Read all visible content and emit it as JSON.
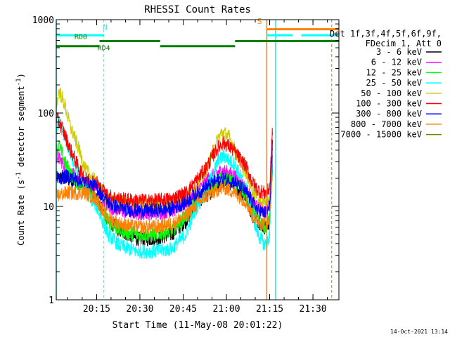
{
  "chart_data": {
    "type": "line",
    "title": "RHESSI Count Rates",
    "xlabel": "Start Time (11-May-08 20:01:22)",
    "ylabel_prefix": "Count Rate (s",
    "ylabel_sup1": "-1",
    "ylabel_mid": " detector segment",
    "ylabel_sup2": "-1",
    "ylabel_suffix": ")",
    "yscale": "log",
    "ylim": [
      1,
      1000
    ],
    "xlim_minutes": [
      0,
      98
    ],
    "xticks": [
      {
        "t": 14,
        "label": "20:15"
      },
      {
        "t": 29,
        "label": "20:30"
      },
      {
        "t": 44,
        "label": "20:45"
      },
      {
        "t": 59,
        "label": "21:00"
      },
      {
        "t": 74,
        "label": "21:15"
      },
      {
        "t": 89,
        "label": "21:30"
      }
    ],
    "yticks": [
      {
        "v": 1,
        "label": "1"
      },
      {
        "v": 10,
        "label": "10"
      },
      {
        "v": 100,
        "label": "100"
      },
      {
        "v": 1000,
        "label": "1000"
      }
    ],
    "legend_header": [
      "Det 1f,3f,4f,5f,6f,9f,",
      "FDecim 1, Att 0"
    ],
    "legend_placement": "right",
    "timestamp": "14-Oct-2021 13:14",
    "series": [
      {
        "name": "3 - 6 keV",
        "color": "#000000",
        "x": [
          0,
          3,
          8,
          10,
          14,
          16,
          18,
          22,
          28,
          34,
          40,
          45,
          48,
          52,
          56,
          58,
          62,
          66,
          68,
          70,
          72,
          73,
          74,
          75
        ],
        "y": [
          20,
          20,
          18,
          16,
          12,
          9,
          7,
          5.5,
          4.5,
          4.5,
          5,
          7,
          10,
          13,
          16,
          18,
          17,
          12,
          8,
          7,
          6,
          6,
          7,
          30
        ]
      },
      {
        "name": "6 - 12 keV",
        "color": "#ff00ff",
        "x": [
          0,
          2,
          5,
          8,
          10,
          14,
          16,
          18,
          22,
          28,
          34,
          40,
          45,
          48,
          52,
          56,
          58,
          62,
          66,
          68,
          70,
          72,
          73,
          74,
          75
        ],
        "y": [
          35,
          30,
          22,
          20,
          18,
          15,
          12,
          10,
          9,
          8.5,
          8.5,
          9,
          11,
          14,
          19,
          23,
          24,
          21,
          15,
          11,
          10,
          9,
          9,
          12,
          50
        ]
      },
      {
        "name": "12 - 25 keV",
        "color": "#00ff00",
        "x": [
          0,
          1,
          3,
          6,
          8,
          10,
          14,
          16,
          18,
          22,
          28,
          34,
          40,
          45,
          48,
          52,
          56,
          58,
          62,
          66,
          68,
          70,
          72,
          73,
          74,
          75
        ],
        "y": [
          40,
          45,
          30,
          20,
          17,
          15,
          12,
          9,
          7,
          5.5,
          5,
          5,
          5.5,
          8,
          11,
          15,
          19,
          20,
          18,
          13,
          9,
          7,
          6,
          6,
          8,
          35
        ]
      },
      {
        "name": "25 - 50 keV",
        "color": "#00ffff",
        "x": [
          0,
          1,
          3,
          5,
          8,
          10,
          14,
          16,
          18,
          22,
          28,
          34,
          40,
          45,
          48,
          52,
          56,
          58,
          62,
          66,
          68,
          70,
          72,
          73,
          74,
          75
        ],
        "y": [
          65,
          80,
          55,
          35,
          22,
          15,
          10,
          7,
          5,
          3.8,
          3.3,
          3.3,
          3.5,
          5,
          9,
          15,
          30,
          35,
          28,
          15,
          8,
          5,
          4,
          4,
          5,
          40
        ]
      },
      {
        "name": "50 - 100 keV",
        "color": "#cccc00",
        "x": [
          0,
          1,
          3,
          5,
          8,
          10,
          14,
          16,
          18,
          22,
          28,
          34,
          40,
          45,
          48,
          52,
          55,
          57,
          58,
          60,
          62,
          66,
          68,
          70,
          72,
          73,
          74,
          75
        ],
        "y": [
          120,
          175,
          120,
          70,
          40,
          25,
          18,
          14,
          12,
          11,
          10.5,
          10.5,
          11,
          13,
          16,
          24,
          45,
          60,
          62,
          55,
          40,
          22,
          15,
          12,
          11,
          11,
          12,
          55
        ]
      },
      {
        "name": "100 - 300 keV",
        "color": "#ff0000",
        "x": [
          0,
          2,
          5,
          8,
          10,
          14,
          16,
          18,
          22,
          28,
          34,
          40,
          45,
          48,
          52,
          55,
          57,
          58,
          60,
          62,
          66,
          68,
          70,
          72,
          73,
          74,
          75
        ],
        "y": [
          90,
          70,
          40,
          25,
          20,
          18,
          15,
          13,
          12,
          11.5,
          11.5,
          12,
          14,
          18,
          26,
          38,
          46,
          48,
          44,
          38,
          26,
          18,
          15,
          14,
          14,
          16,
          70
        ]
      },
      {
        "name": "300 - 800 keV",
        "color": "#0000ff",
        "x": [
          0,
          4,
          8,
          10,
          14,
          16,
          18,
          22,
          28,
          34,
          40,
          45,
          48,
          52,
          56,
          58,
          62,
          66,
          68,
          70,
          72,
          73,
          74,
          75
        ],
        "y": [
          20,
          21,
          19,
          18,
          16,
          13,
          11,
          9.5,
          9,
          9,
          9.5,
          11,
          13,
          16,
          19,
          20,
          18,
          14,
          11,
          9,
          8.5,
          8.5,
          10,
          45
        ]
      },
      {
        "name": "800 - 7000 keV",
        "color": "#ff8000",
        "x": [
          0,
          4,
          8,
          10,
          14,
          16,
          18,
          22,
          28,
          34,
          40,
          45,
          48,
          52,
          56,
          58,
          62,
          66,
          68,
          70,
          72,
          73,
          74,
          75
        ],
        "y": [
          13,
          14,
          14,
          14,
          12,
          9,
          7.5,
          6.5,
          6,
          6,
          6.5,
          8,
          10,
          13,
          15,
          16,
          14,
          11,
          8,
          7,
          6.5,
          6.5,
          7.5,
          25
        ]
      },
      {
        "name": "7000 - 15000 keV",
        "color": "#808000",
        "x": [],
        "y": []
      }
    ],
    "annotations": {
      "attenuator_bar": {
        "color": "#00ffff",
        "level": 680,
        "segments": [
          [
            0,
            16.5
          ],
          [
            73,
            82
          ],
          [
            85,
            98
          ]
        ]
      },
      "decimation_bars": {
        "color": "#008000",
        "levels": [
          520,
          590
        ],
        "segments": [
          [
            0,
            15,
            520
          ],
          [
            15,
            36,
            590
          ],
          [
            36,
            62,
            520
          ],
          [
            62,
            98,
            590
          ]
        ],
        "labels": [
          {
            "text": "RD0",
            "t": 8.5,
            "v": 620
          },
          {
            "text": "RD4",
            "t": 16.5,
            "v": 470
          }
        ]
      },
      "saa_bar": {
        "color": "#ff8000",
        "level": 790,
        "segments": [
          [
            73,
            98
          ]
        ]
      },
      "night_label": {
        "text": "N",
        "color": "#00ffff",
        "t": 17,
        "v": 780
      },
      "saa_label": {
        "text": "S",
        "color": "#ff8000",
        "t": 70.5,
        "v": 900
      },
      "cyan_dashed_lines": [
        16.5,
        95.5
      ],
      "cyan_solid_lines": [
        0,
        76
      ],
      "orange_solid_lines": [
        73
      ],
      "orange_dashed_lines": [
        95.5
      ]
    }
  }
}
